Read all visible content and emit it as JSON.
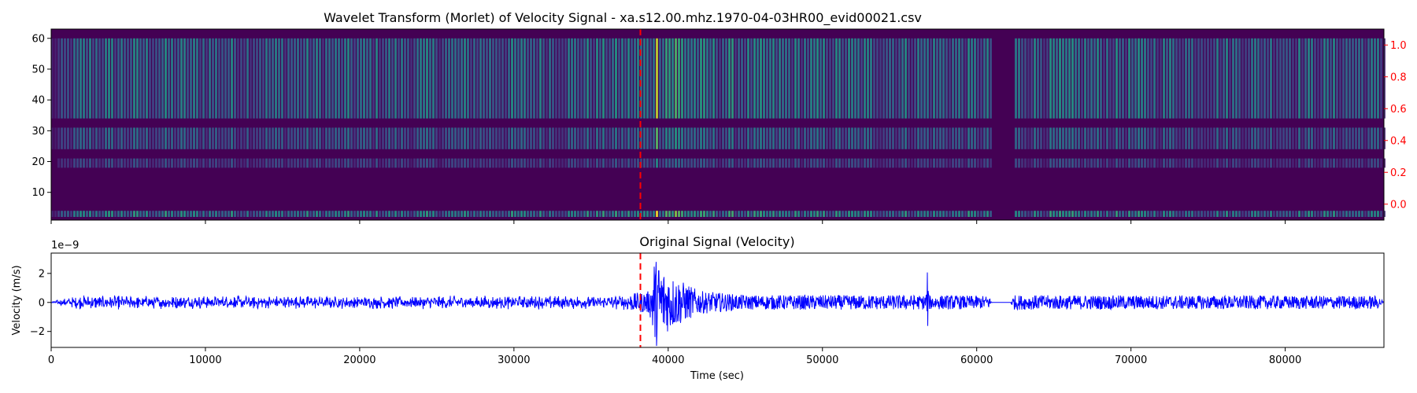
{
  "chart_data": [
    {
      "type": "heatmap",
      "title": "Wavelet Transform (Morlet) of Velocity Signal - xa.s12.00.mhz.1970-04-03HR00_evid00021.csv",
      "xlabel": "",
      "ylabel": "",
      "xlim": [
        0,
        86400
      ],
      "ylim": [
        1,
        63
      ],
      "yticks": [
        10,
        20,
        30,
        40,
        50,
        60
      ],
      "xticks": [
        0,
        10000,
        20000,
        30000,
        40000,
        50000,
        60000,
        70000,
        80000
      ],
      "secondary_y": {
        "ylim": [
          -0.1,
          1.1
        ],
        "yticks": [
          0.0,
          0.2,
          0.4,
          0.6,
          0.8,
          1.0
        ],
        "tick_labels": [
          "0.0",
          "0.2",
          "0.4",
          "0.6",
          "0.8",
          "1.0"
        ],
        "color": "#ff0000"
      },
      "colormap": "viridis",
      "bands": [
        {
          "scale_range": [
            34,
            60
          ],
          "level": 0.35
        },
        {
          "scale_range": [
            24,
            31
          ],
          "level": 0.28
        },
        {
          "scale_range": [
            18,
            21
          ],
          "level": 0.2
        },
        {
          "scale_range": [
            2,
            4
          ],
          "level": 0.4
        }
      ],
      "event_line": {
        "x": 38200,
        "color": "#ff0000"
      }
    },
    {
      "type": "line",
      "title": "Original Signal (Velocity)",
      "xlabel": "Time (sec)",
      "ylabel": "Velocity (m/s)",
      "xlim": [
        0,
        86400
      ],
      "ylim": [
        -3.1e-09,
        3.4e-09
      ],
      "y_offset_text": "1e−9",
      "xticks": [
        0,
        10000,
        20000,
        30000,
        40000,
        50000,
        60000,
        70000,
        80000
      ],
      "xtick_labels": [
        "0",
        "10000",
        "20000",
        "30000",
        "40000",
        "50000",
        "60000",
        "70000",
        "80000"
      ],
      "yticks": [
        -2,
        0,
        2
      ],
      "ytick_labels": [
        "−2",
        "0",
        "2"
      ],
      "color": "#0000ff",
      "envelope": [
        {
          "x": 0,
          "amp": 0.05
        },
        {
          "x": 500,
          "amp": 0.2
        },
        {
          "x": 2000,
          "amp": 0.5
        },
        {
          "x": 20000,
          "amp": 0.45
        },
        {
          "x": 37000,
          "amp": 0.5
        },
        {
          "x": 38800,
          "amp": 0.8
        },
        {
          "x": 39100,
          "amp": 3.2
        },
        {
          "x": 40000,
          "amp": 2.0
        },
        {
          "x": 42000,
          "amp": 0.8
        },
        {
          "x": 45000,
          "amp": 0.5
        },
        {
          "x": 56700,
          "amp": 0.5
        },
        {
          "x": 56800,
          "amp": 2.4
        },
        {
          "x": 56900,
          "amp": 0.5
        },
        {
          "x": 60800,
          "amp": 0.45
        },
        {
          "x": 61000,
          "amp": 0.05
        },
        {
          "x": 62200,
          "amp": 0.05
        },
        {
          "x": 62400,
          "amp": 0.5
        },
        {
          "x": 86000,
          "amp": 0.45
        },
        {
          "x": 86400,
          "amp": 0.05
        }
      ],
      "event_line": {
        "x": 38200,
        "color": "#ff0000"
      }
    }
  ]
}
